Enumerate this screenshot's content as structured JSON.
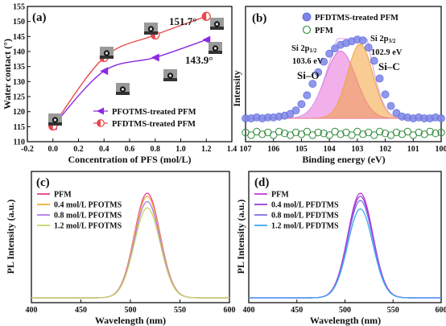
{
  "chart_data": [
    {
      "panel": "(a)",
      "type": "line",
      "xlabel": "Concentration of PFS (mol/L)",
      "ylabel": "Water contact (°)",
      "xlim": [
        -0.2,
        1.4
      ],
      "ylim": [
        110,
        155
      ],
      "xticks": [
        "-0.2",
        "0.0",
        "0.2",
        "0.4",
        "0.6",
        "0.8",
        "1.0",
        "1.2",
        "1.4"
      ],
      "yticks": [
        "110",
        "115",
        "120",
        "125",
        "130",
        "135",
        "140",
        "145",
        "150",
        "155"
      ],
      "legend": "lower-right",
      "series": [
        {
          "name": "PFOTMS-treated PFM",
          "x": [
            0,
            0.4,
            0.8,
            1.2
          ],
          "y": [
            115.2,
            133.5,
            138.0,
            143.9
          ],
          "color": "#8a2be2",
          "marker": "left-triangle"
        },
        {
          "name": "PFDTMS-treated PFM",
          "x": [
            0,
            0.4,
            0.8,
            1.2
          ],
          "y": [
            115.2,
            138.0,
            145.5,
            151.7
          ],
          "color": "#e8484d",
          "marker": "half-circle"
        }
      ],
      "annotations": [
        "151.7°",
        "143.9°"
      ]
    },
    {
      "panel": "(b)",
      "type": "line",
      "xlabel": "Binding energy (eV)",
      "ylabel": "Intensity",
      "xlim": [
        107,
        100
      ],
      "xticks": [
        "107",
        "106",
        "105",
        "104",
        "103",
        "102",
        "101",
        "100"
      ],
      "legend": "top-right",
      "series": [
        {
          "name": "PFDTMS-treated PFM",
          "color": "#7b86e8",
          "marker": "filled-circle",
          "x": [
            107.0,
            106.8,
            106.6,
            106.4,
            106.2,
            106.0,
            105.8,
            105.6,
            105.4,
            105.2,
            105.0,
            104.8,
            104.6,
            104.4,
            104.2,
            104.0,
            103.8,
            103.6,
            103.4,
            103.2,
            103.0,
            102.8,
            102.6,
            102.4,
            102.2,
            102.0,
            101.8,
            101.6,
            101.4,
            101.2,
            101.0,
            100.8,
            100.6,
            100.4,
            100.2,
            100.0
          ],
          "y": [
            0.1,
            0.1,
            0.11,
            0.1,
            0.11,
            0.11,
            0.12,
            0.13,
            0.15,
            0.19,
            0.26,
            0.36,
            0.49,
            0.62,
            0.74,
            0.83,
            0.89,
            0.93,
            0.95,
            0.97,
            0.99,
            0.98,
            0.9,
            0.75,
            0.55,
            0.37,
            0.24,
            0.16,
            0.12,
            0.11,
            0.1,
            0.11,
            0.1,
            0.1,
            0.11,
            0.1
          ]
        },
        {
          "name": "PFM",
          "color": "#2e8b3a",
          "marker": "open-circle",
          "x": [
            107.0,
            106.8,
            106.6,
            106.4,
            106.2,
            106.0,
            105.8,
            105.6,
            105.4,
            105.2,
            105.0,
            104.8,
            104.6,
            104.4,
            104.2,
            104.0,
            103.8,
            103.6,
            103.4,
            103.2,
            103.0,
            102.8,
            102.6,
            102.4,
            102.2,
            102.0,
            101.8,
            101.6,
            101.4,
            101.2,
            101.0,
            100.8,
            100.6,
            100.4,
            100.2,
            100.0
          ],
          "y": [
            -0.06,
            -0.09,
            -0.05,
            -0.08,
            -0.06,
            -0.09,
            -0.05,
            -0.07,
            -0.09,
            -0.06,
            -0.08,
            -0.05,
            -0.09,
            -0.06,
            -0.07,
            -0.09,
            -0.05,
            -0.08,
            -0.06,
            -0.09,
            -0.05,
            -0.08,
            -0.06,
            -0.09,
            -0.05,
            -0.07,
            -0.09,
            -0.06,
            -0.08,
            -0.05,
            -0.09,
            -0.06,
            -0.08,
            -0.05,
            -0.07,
            -0.06
          ]
        }
      ],
      "peaks": [
        {
          "label": "Si–O",
          "sublabel": "Si 2p1/2",
          "energy": "103.6 eV",
          "center": 103.6,
          "height": 0.76,
          "width": 0.55,
          "color": "#e56fd8"
        },
        {
          "label": "Si–C",
          "sublabel": "Si 2p3/2",
          "energy": "102.9 eV",
          "center": 102.9,
          "height": 0.84,
          "width": 0.45,
          "color": "#f2a33a"
        }
      ],
      "baseline": 0.1
    },
    {
      "panel": "(c)",
      "type": "line",
      "xlabel": "Wavelength (nm)",
      "ylabel": "PL Intensity (a.u.)",
      "xlim": [
        400,
        600
      ],
      "xticks": [
        "400",
        "450",
        "500",
        "550",
        "600"
      ],
      "legend": "top-left",
      "peak_nm": 517,
      "series": [
        {
          "name": "PFM",
          "color": "#ef3f8f",
          "peak": 1.0
        },
        {
          "name": "0.4 mol/L PFOTMS",
          "color": "#e9b23a",
          "peak": 0.97
        },
        {
          "name": "0.8 mol/L PFOTMS",
          "color": "#b478e8",
          "peak": 0.92
        },
        {
          "name": "1.2 mol/L PFOTMS",
          "color": "#c7d66a",
          "peak": 0.86
        }
      ]
    },
    {
      "panel": "(d)",
      "type": "line",
      "xlabel": "Wavelength (nm)",
      "ylabel": "PL Intensity (a.u.)",
      "xlim": [
        400,
        600
      ],
      "xticks": [
        "400",
        "450",
        "500",
        "550",
        "600"
      ],
      "legend": "top-left",
      "peak_nm": 516,
      "series": [
        {
          "name": "PFM",
          "color": "#c43bd9",
          "peak": 1.0
        },
        {
          "name": "0.4 mol/L PFDTMS",
          "color": "#9b3ed6",
          "peak": 0.97
        },
        {
          "name": "0.8 mol/L PFDTMS",
          "color": "#7f6fe6",
          "peak": 0.93
        },
        {
          "name": "1.2 mol/L PFDTMS",
          "color": "#3fa8ee",
          "peak": 0.85
        }
      ]
    }
  ]
}
